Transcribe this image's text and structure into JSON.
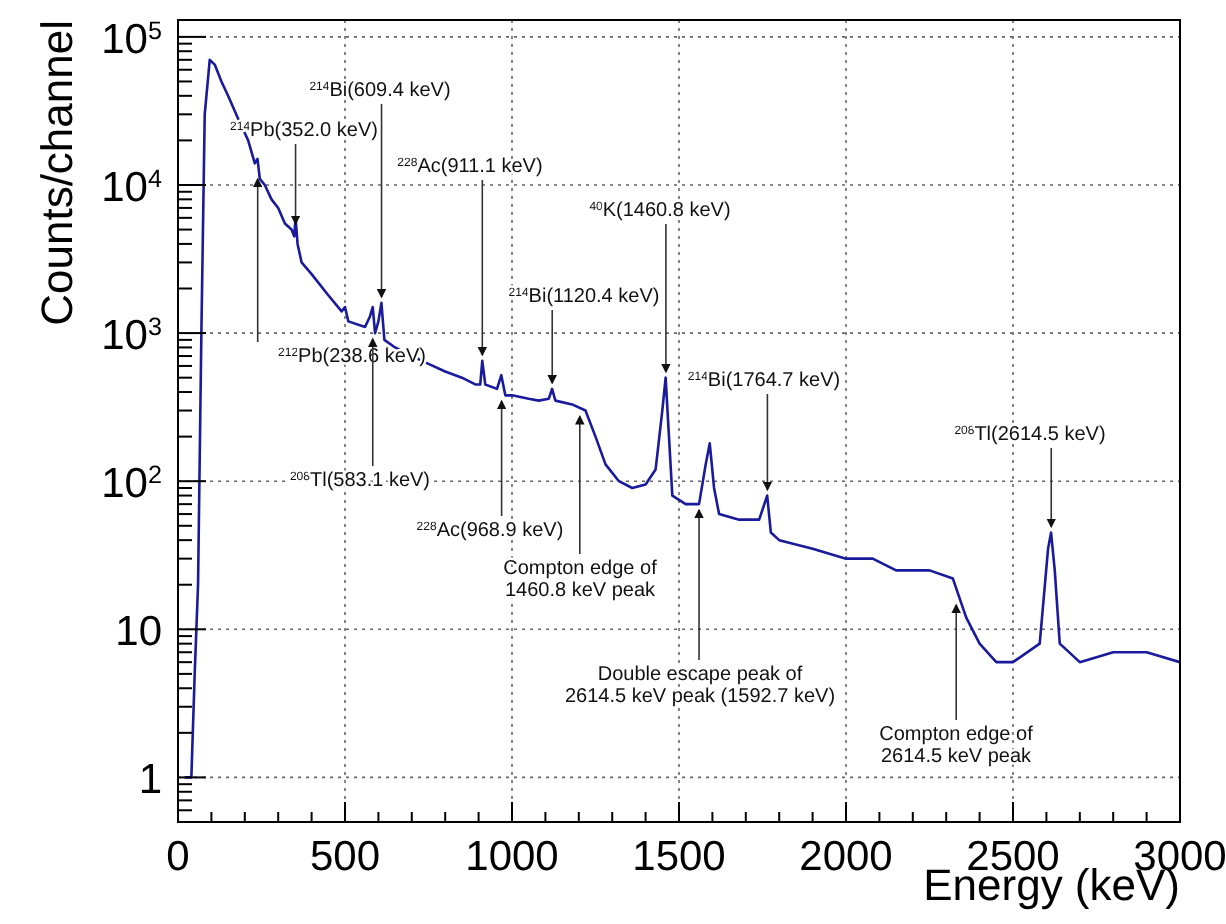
{
  "chart_data": {
    "type": "line",
    "xlabel": "Energy (keV)",
    "ylabel": "Counts/channel",
    "log": "y",
    "grid": true,
    "line_style": "solid",
    "xlim": [
      0,
      3000
    ],
    "xticks": [
      0,
      500,
      1000,
      1500,
      2000,
      2500,
      3000
    ],
    "ylim": [
      0.5,
      130000
    ],
    "yticks": [
      1,
      10,
      {
        "value": 100,
        "label": "10$^{2}$"
      },
      {
        "value": 1000,
        "label": "10$^{3}$"
      },
      {
        "value": 10000,
        "label": "10$^{4}$"
      },
      {
        "value": 100000,
        "label": "10$^{5}$"
      }
    ],
    "series": [
      {
        "color": "#1a1a9c",
        "x": [
          20,
          40,
          50,
          60,
          70,
          80,
          95,
          110,
          130,
          150,
          180,
          210,
          230,
          238,
          245,
          260,
          280,
          300,
          320,
          340,
          348,
          352,
          358,
          370,
          400,
          450,
          490,
          500,
          510,
          560,
          575,
          583,
          590,
          600,
          609,
          618,
          650,
          700,
          750,
          800,
          850,
          890,
          905,
          911,
          920,
          955,
          968,
          980,
          1000,
          1050,
          1080,
          1110,
          1120,
          1130,
          1180,
          1220,
          1250,
          1280,
          1320,
          1360,
          1400,
          1430,
          1450,
          1460,
          1470,
          1480,
          1520,
          1560,
          1580,
          1592,
          1605,
          1620,
          1680,
          1740,
          1764,
          1775,
          1800,
          1900,
          2000,
          2080,
          2150,
          2250,
          2320,
          2360,
          2400,
          2450,
          2500,
          2580,
          2605,
          2614,
          2625,
          2640,
          2700,
          2800,
          2900,
          3000
        ],
        "values": [
          1,
          1,
          5,
          20,
          1000,
          30000,
          70000,
          65000,
          50000,
          40000,
          28000,
          20000,
          14000,
          15000,
          11000,
          10000,
          8000,
          7000,
          5500,
          5000,
          4500,
          6000,
          4000,
          3000,
          2500,
          1800,
          1400,
          1500,
          1200,
          1100,
          1300,
          1500,
          1000,
          1200,
          1600,
          900,
          800,
          700,
          620,
          550,
          500,
          450,
          450,
          650,
          450,
          420,
          520,
          380,
          380,
          360,
          350,
          360,
          420,
          350,
          330,
          300,
          200,
          130,
          100,
          90,
          95,
          120,
          300,
          500,
          200,
          80,
          70,
          70,
          130,
          180,
          90,
          60,
          55,
          55,
          80,
          45,
          40,
          35,
          30,
          30,
          25,
          25,
          22,
          12,
          8,
          6,
          6,
          8,
          35,
          45,
          25,
          8,
          6,
          7,
          7,
          6
        ]
      }
    ],
    "annotations": [
      {
        "text": "$^{212}$Pb(238.6 keV)",
        "x": 238.6,
        "y": 12000
      },
      {
        "text": "$^{214}$Pb(352.0 keV)",
        "x": 352,
        "y": 5000
      },
      {
        "text": "$^{214}$Bi(609.4 keV)",
        "x": 609.4,
        "y": 1600
      },
      {
        "text": "$^{228}$Ac(911.1 keV)",
        "x": 911.1,
        "y": 650
      },
      {
        "text": "$^{208}$Tl(583.1 keV)",
        "x": 583.1,
        "y": 1000
      },
      {
        "text": "$^{40}$K(1460.8 keV)",
        "x": 1460.8,
        "y": 500
      },
      {
        "text": "$^{214}$Bi(1120.4 keV)",
        "x": 1120.4,
        "y": 420
      },
      {
        "text": "$^{228}$Ac(968.9 keV)",
        "x": 968.9,
        "y": 380
      },
      {
        "text": "Compton edge of\n1460.8 keV peak",
        "x": 1203,
        "y": 300
      },
      {
        "text": "$^{214}$Bi(1764.7 keV)",
        "x": 1764.7,
        "y": 80
      },
      {
        "text": "Double escape peak of\n2614.5 keV peak (1592.7 keV)",
        "x": 1560,
        "y": 70
      },
      {
        "text": "$^{208}$Tl(2614.5 keV)",
        "x": 2614.5,
        "y": 45
      },
      {
        "text": "Compton edge of\n2614.5 keV peak",
        "x": 2330,
        "y": 16
      }
    ]
  }
}
